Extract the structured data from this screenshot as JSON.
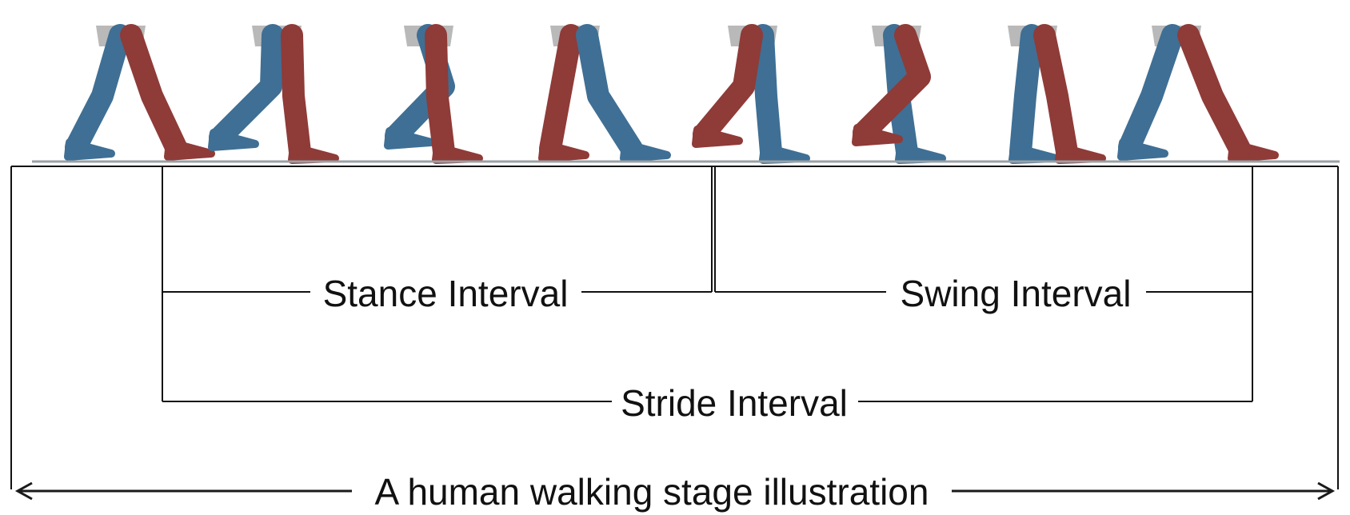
{
  "labels": {
    "stance": "Stance Interval",
    "swing": "Swing Interval",
    "stride": "Stride Interval",
    "caption": "A human walking stage illustration"
  },
  "colors": {
    "leg_left": "#3f6f94",
    "leg_right": "#8f3b38",
    "hip": "#b9b9b9",
    "ground": "#9aa0a6",
    "line": "#111111"
  },
  "figure_count": 8
}
